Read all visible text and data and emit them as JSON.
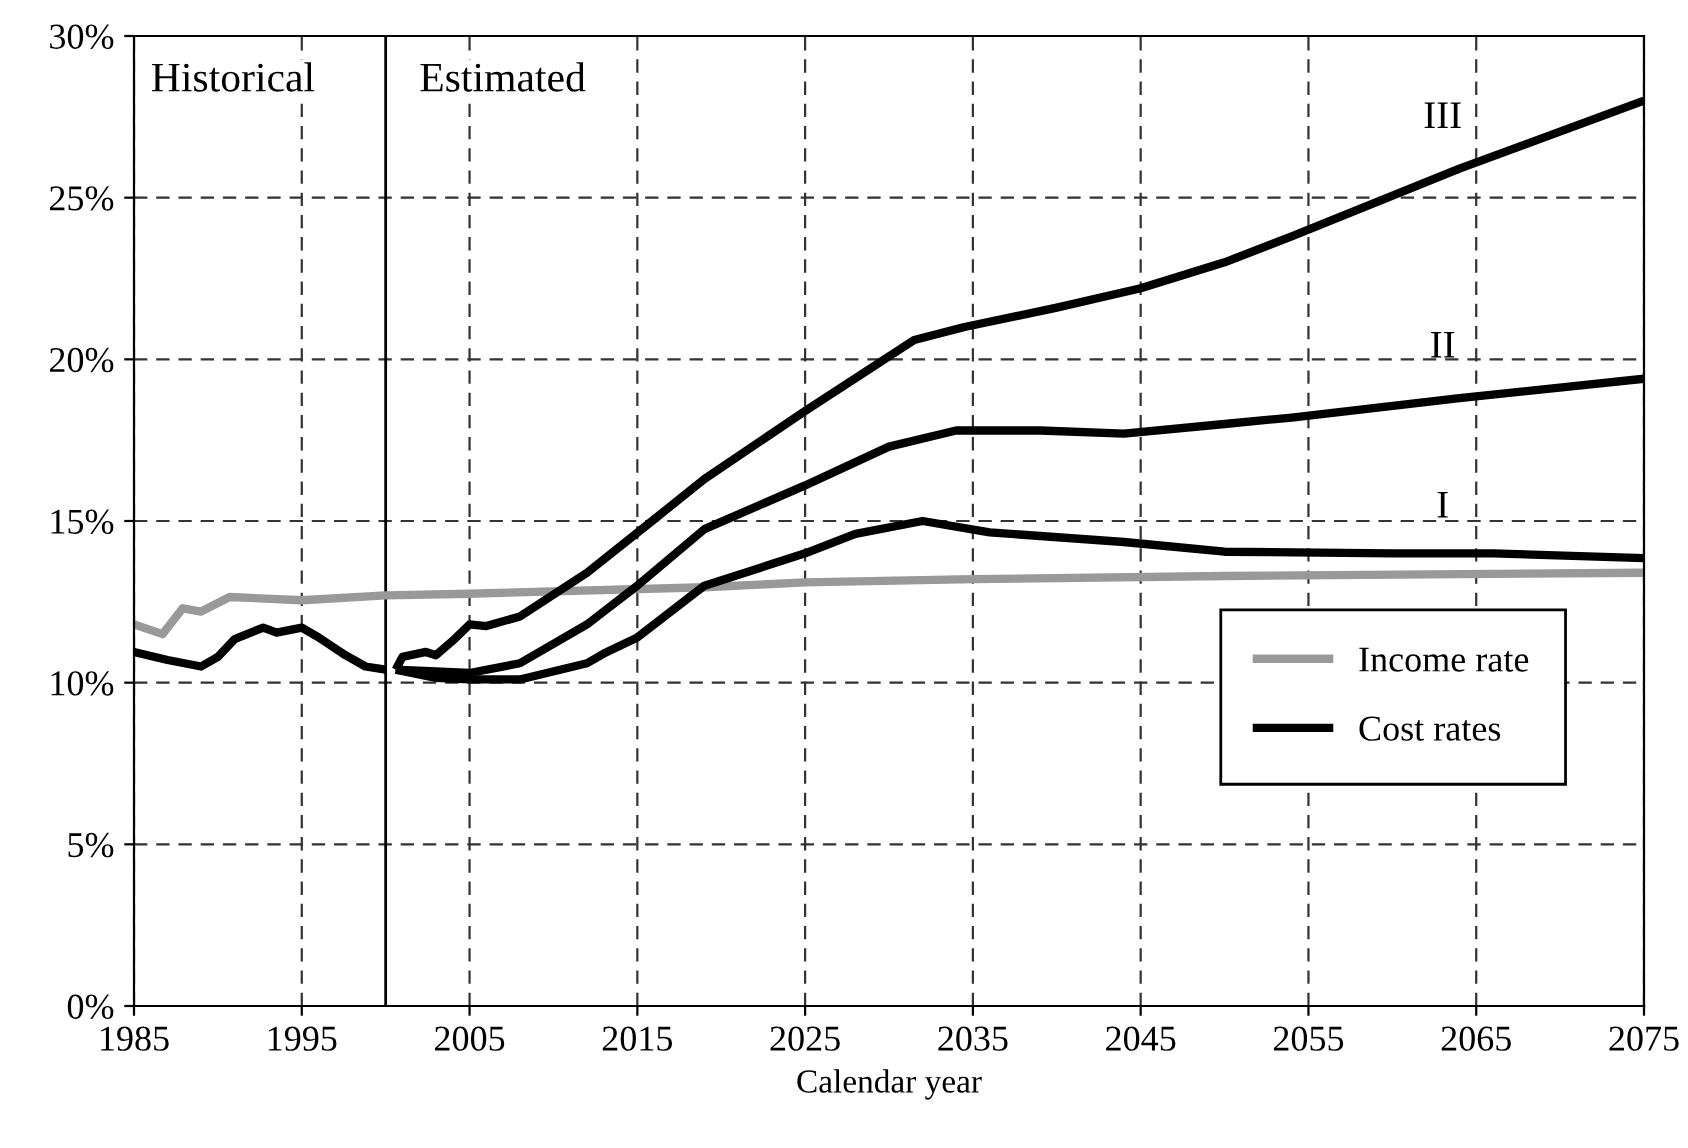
{
  "chart_data": {
    "type": "line",
    "xlabel": "Calendar year",
    "xlim": [
      1985,
      2075
    ],
    "xticks": [
      1985,
      1995,
      2005,
      2015,
      2025,
      2035,
      2045,
      2055,
      2065,
      2075
    ],
    "ylim": [
      0,
      30
    ],
    "yticks": [
      {
        "value": 0,
        "label": "0%"
      },
      {
        "value": 5,
        "label": "5%"
      },
      {
        "value": 10,
        "label": "10%"
      },
      {
        "value": 15,
        "label": "15%"
      },
      {
        "value": 20,
        "label": "20%"
      },
      {
        "value": 25,
        "label": "25%"
      },
      {
        "value": 30,
        "label": "30%"
      }
    ],
    "grid": true,
    "legend": "bottom right",
    "marker": "none",
    "line_style": "solid",
    "ref_lines": [
      {
        "axis": "x",
        "value": 2000,
        "color": "#000000",
        "line_style": "solid"
      }
    ],
    "annotations": [
      "Historical",
      "Estimated"
    ],
    "series": [
      {
        "name": "Income rate",
        "color": "#999999",
        "x": [
          1985,
          1986.7,
          1987.9,
          1989,
          1990.7,
          1995,
          2000,
          2005,
          2019,
          2025,
          2035,
          2050,
          2075
        ],
        "values": [
          11.8,
          11.5,
          12.3,
          12.2,
          12.65,
          12.55,
          12.7,
          12.75,
          12.95,
          13.1,
          13.2,
          13.3,
          13.4
        ]
      },
      {
        "name": "Cost rates",
        "color": "#000000",
        "x": [
          1985,
          1987,
          1989,
          1990,
          1991,
          1992.7,
          1993.5,
          1995,
          1996,
          1997.6,
          1998.8,
          2000
        ],
        "values": [
          10.95,
          10.7,
          10.5,
          10.8,
          11.35,
          11.7,
          11.55,
          11.7,
          11.4,
          10.85,
          10.5,
          10.4
        ]
      },
      {
        "name": "I",
        "color": "#000000",
        "x": [
          2000.6,
          2003,
          2005,
          2008,
          2012,
          2013,
          2015,
          2019,
          2025,
          2028,
          2032,
          2036,
          2044,
          2050,
          2060,
          2066,
          2075
        ],
        "values": [
          10.4,
          10.15,
          10.1,
          10.1,
          10.6,
          10.9,
          11.4,
          13.0,
          14.0,
          14.6,
          15.0,
          14.65,
          14.35,
          14.05,
          14.0,
          14.0,
          13.85
        ]
      },
      {
        "name": "II",
        "color": "#000000",
        "x": [
          2000.6,
          2003,
          2005,
          2008,
          2012,
          2013,
          2015,
          2019,
          2025,
          2030,
          2034,
          2039,
          2044,
          2050,
          2054,
          2064,
          2075
        ],
        "values": [
          10.4,
          10.35,
          10.3,
          10.6,
          11.8,
          12.2,
          13.0,
          14.75,
          16.1,
          17.3,
          17.8,
          17.8,
          17.7,
          18.0,
          18.2,
          18.8,
          19.4
        ]
      },
      {
        "name": "III",
        "color": "#000000",
        "x": [
          2000.6,
          2001,
          2002.4,
          2003,
          2004,
          2005,
          2006,
          2008,
          2012,
          2016,
          2019,
          2025,
          2031.5,
          2034.5,
          2040,
          2045,
          2050,
          2054,
          2064,
          2075
        ],
        "values": [
          10.4,
          10.8,
          10.95,
          10.85,
          11.3,
          11.8,
          11.75,
          12.05,
          13.4,
          15.05,
          16.3,
          18.4,
          20.6,
          21.0,
          21.6,
          22.2,
          23.0,
          23.8,
          25.9,
          28.0
        ]
      }
    ]
  }
}
